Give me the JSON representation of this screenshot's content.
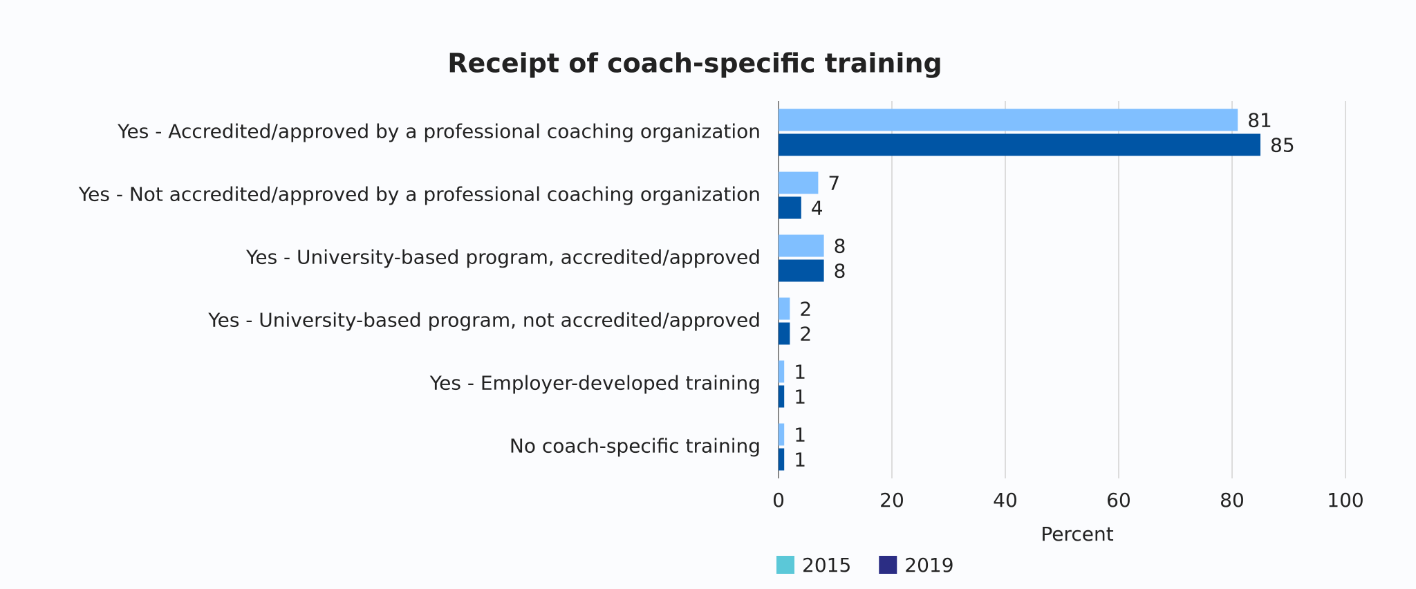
{
  "chart_data": {
    "type": "bar",
    "orientation": "horizontal",
    "title": "Receipt of coach-specific training",
    "categories": [
      "Yes - Accredited/approved by a professional coaching organization",
      "Yes - Not accredited/approved by a professional coaching organization",
      "Yes - University-based program, accredited/approved",
      "Yes - University-based program, not accredited/approved",
      "Yes - Employer-developed training",
      "No coach-specific training"
    ],
    "series": [
      {
        "name": "2015",
        "color": "#80bfff",
        "legend_color": "#5bc8d8",
        "values": [
          81,
          7,
          8,
          2,
          1,
          1
        ]
      },
      {
        "name": "2019",
        "color": "#0055a5",
        "legend_color": "#2b2d84",
        "values": [
          85,
          4,
          8,
          2,
          1,
          1
        ]
      }
    ],
    "xlabel": "Percent",
    "xlim": [
      0,
      100
    ],
    "xticks": [
      0,
      20,
      40,
      60,
      80,
      100
    ],
    "grid": true,
    "legend": "bottom"
  }
}
